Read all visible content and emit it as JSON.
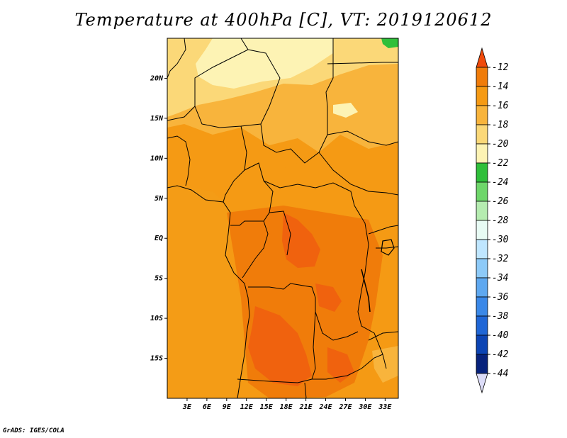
{
  "title": "Temperature at 400hPa [C], VT: 2019120612",
  "credit": "GrADS: IGES/COLA",
  "map": {
    "lon_range": [
      0,
      35
    ],
    "lat_range": [
      -20,
      25
    ],
    "lat_ticks": [
      {
        "value": 20,
        "label": "20N"
      },
      {
        "value": 15,
        "label": "15N"
      },
      {
        "value": 10,
        "label": "10N"
      },
      {
        "value": 5,
        "label": "5N"
      },
      {
        "value": 0,
        "label": "EQ"
      },
      {
        "value": -5,
        "label": "5S"
      },
      {
        "value": -10,
        "label": "10S"
      },
      {
        "value": -15,
        "label": "15S"
      }
    ],
    "lon_ticks": [
      {
        "value": 3,
        "label": "3E"
      },
      {
        "value": 6,
        "label": "6E"
      },
      {
        "value": 9,
        "label": "9E"
      },
      {
        "value": 12,
        "label": "12E"
      },
      {
        "value": 15,
        "label": "15E"
      },
      {
        "value": 18,
        "label": "18E"
      },
      {
        "value": 21,
        "label": "21E"
      },
      {
        "value": 24,
        "label": "24E"
      },
      {
        "value": 27,
        "label": "27E"
      },
      {
        "value": 30,
        "label": "30E"
      },
      {
        "value": 33,
        "label": "33E"
      }
    ]
  },
  "colorbar": {
    "levels": [
      "-12",
      "-14",
      "-16",
      "-18",
      "-20",
      "-22",
      "-24",
      "-26",
      "-28",
      "-30",
      "-32",
      "-34",
      "-36",
      "-38",
      "-40",
      "-42",
      "-44"
    ],
    "colors": [
      "#f04a0a",
      "#f07c0a",
      "#f59a14",
      "#f8b43c",
      "#fbd878",
      "#fdf3b4",
      "#2fbf3a",
      "#6ed66a",
      "#b5ecb0",
      "#e8fbf4",
      "#bfe6ff",
      "#8dcaf8",
      "#5ea8f0",
      "#3a88e8",
      "#1f66d6",
      "#0c44b4",
      "#07227c",
      "#0a0a5a",
      "#dcdcf8"
    ]
  },
  "palette": {
    "ocean": "#f49c16",
    "land": "#f7a82a",
    "warm": "#f07c0a",
    "hot": "#f0620e",
    "cool": "#fbd878",
    "coolest": "#fdf3b4",
    "green": "#2fbf3a"
  }
}
